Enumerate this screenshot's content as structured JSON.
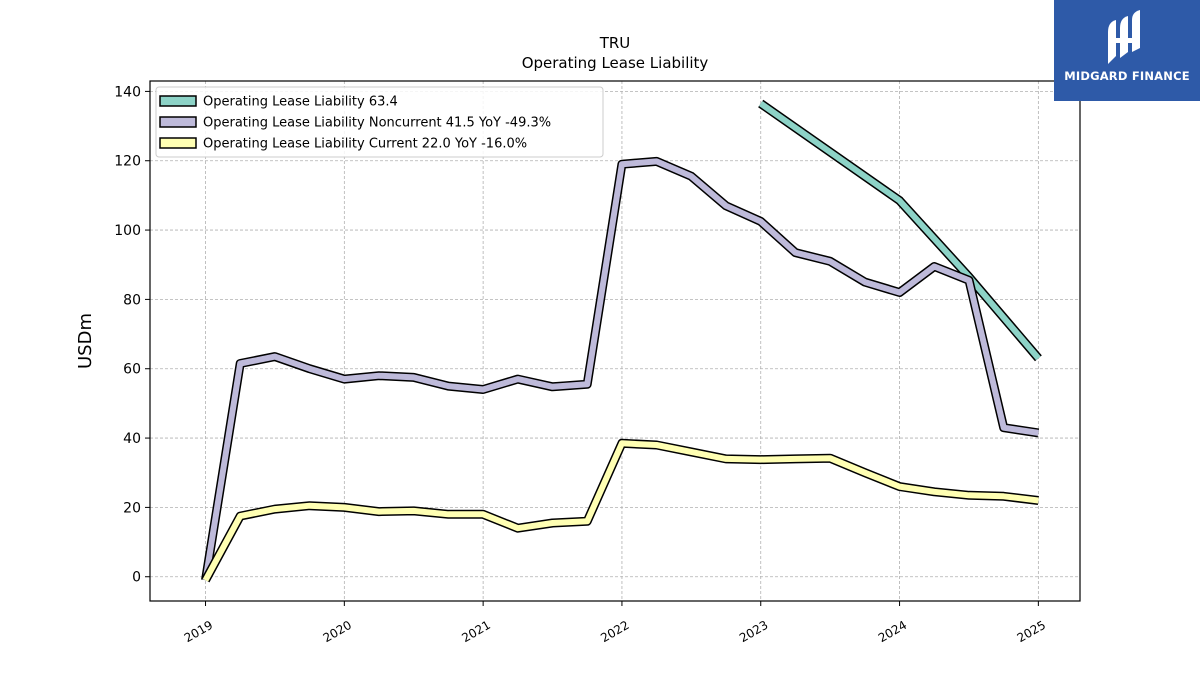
{
  "brand": {
    "name": "MIDGARD FINANCE",
    "color": "#2e5aa8",
    "icon": "midgard-logo-icon"
  },
  "chart_data": {
    "type": "line",
    "title": "TRU",
    "subtitle": "Operating Lease Liability",
    "ylabel": "USDm",
    "xlabel": "",
    "ylim": [
      -7,
      143
    ],
    "xlim": [
      2018.6,
      2025.3
    ],
    "yticks": [
      0,
      20,
      40,
      60,
      80,
      100,
      120,
      140
    ],
    "xticks": [
      2019,
      2020,
      2021,
      2022,
      2023,
      2024,
      2025
    ],
    "grid": true,
    "legend_position": "top-left",
    "series": [
      {
        "name": "Operating Lease Liability",
        "legend": "Operating Lease Liability  63.4",
        "color": "#8dd3c7",
        "points": [
          [
            2023.0,
            136.5
          ],
          [
            2024.0,
            108.5
          ],
          [
            2024.5,
            86.5
          ],
          [
            2025.0,
            63.0
          ]
        ]
      },
      {
        "name": "Operating Lease Liability Noncurrent",
        "legend": "Operating Lease Liability Noncurrent  41.5 YoY -49.3%",
        "color": "#bebada",
        "points": [
          [
            2019.0,
            -1.0
          ],
          [
            2019.25,
            61.5
          ],
          [
            2019.5,
            63.5
          ],
          [
            2019.75,
            60.0
          ],
          [
            2020.0,
            57.0
          ],
          [
            2020.25,
            58.0
          ],
          [
            2020.5,
            57.5
          ],
          [
            2020.75,
            55.0
          ],
          [
            2021.0,
            54.0
          ],
          [
            2021.25,
            57.0
          ],
          [
            2021.5,
            54.8
          ],
          [
            2021.75,
            55.5
          ],
          [
            2022.0,
            119.0
          ],
          [
            2022.25,
            119.8
          ],
          [
            2022.5,
            115.5
          ],
          [
            2022.75,
            107.0
          ],
          [
            2023.0,
            102.5
          ],
          [
            2023.25,
            93.5
          ],
          [
            2023.5,
            91.0
          ],
          [
            2023.75,
            85.0
          ],
          [
            2024.0,
            82.0
          ],
          [
            2024.25,
            89.5
          ],
          [
            2024.5,
            85.5
          ],
          [
            2024.75,
            43.0
          ],
          [
            2025.0,
            41.5
          ]
        ]
      },
      {
        "name": "Operating Lease Liability Current",
        "legend": "Operating Lease Liability Current  22.0 YoY -16.0%",
        "color": "#ffffb3",
        "points": [
          [
            2019.0,
            -1.0
          ],
          [
            2019.25,
            17.5
          ],
          [
            2019.5,
            19.5
          ],
          [
            2019.75,
            20.5
          ],
          [
            2020.0,
            20.0
          ],
          [
            2020.25,
            18.8
          ],
          [
            2020.5,
            19.0
          ],
          [
            2020.75,
            18.0
          ],
          [
            2021.0,
            18.0
          ],
          [
            2021.25,
            14.0
          ],
          [
            2021.5,
            15.5
          ],
          [
            2021.75,
            16.0
          ],
          [
            2022.0,
            38.5
          ],
          [
            2022.25,
            38.0
          ],
          [
            2022.5,
            36.0
          ],
          [
            2022.75,
            34.0
          ],
          [
            2023.0,
            33.8
          ],
          [
            2023.25,
            34.0
          ],
          [
            2023.5,
            34.2
          ],
          [
            2023.75,
            30.0
          ],
          [
            2024.0,
            26.0
          ],
          [
            2024.25,
            24.5
          ],
          [
            2024.5,
            23.5
          ],
          [
            2024.75,
            23.2
          ],
          [
            2025.0,
            22.0
          ]
        ]
      }
    ]
  }
}
